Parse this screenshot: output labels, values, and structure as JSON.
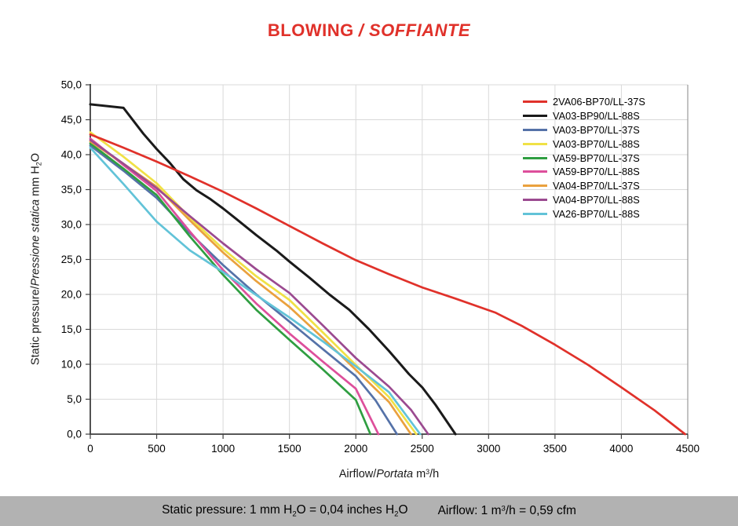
{
  "title": {
    "part1": "BLOWING",
    "part2": "/ SOFFIANTE",
    "color": "#e0312a"
  },
  "axis": {
    "y_upright": "Static pressure/",
    "y_italic": "Pressione statica",
    "y_unit_prefix": " mm  H",
    "y_unit_sub": "2",
    "y_unit_suffix": "O",
    "x_upright": "Airflow/",
    "x_italic": "Portata",
    "x_unit_prefix": " m",
    "x_unit_sup": "3",
    "x_unit_suffix": "/h"
  },
  "footer": {
    "sp_prefix": "Static pressure: 1 mm H",
    "sp_sub1": "2",
    "sp_mid": "O = 0,04 inches H",
    "sp_sub2": "2",
    "sp_suffix": "O",
    "af_prefix": "Airflow: 1 m",
    "af_sup": "3",
    "af_suffix": "/h = 0,59 cfm",
    "bar_color": "#b2b2b2"
  },
  "chart_data": {
    "type": "line",
    "title": "BLOWING / SOFFIANTE",
    "xlabel": "Airflow/Portata m3/h",
    "ylabel": "Static pressure/Pressione statica mm H2O",
    "xlim": [
      0,
      4500
    ],
    "ylim": [
      0,
      50
    ],
    "grid": true,
    "legend_position": "upper right",
    "x_ticks": [
      "0",
      "500",
      "1000",
      "1500",
      "2000",
      "2500",
      "3000",
      "3500",
      "4000",
      "4500"
    ],
    "y_ticks": [
      "50,0",
      "45,0",
      "40,0",
      "35,0",
      "30,0",
      "25,0",
      "20,0",
      "15,0",
      "10,0",
      "5,0",
      "0,0"
    ],
    "colors": {
      "gridline": "#d9d9d9",
      "axis": "#3f3f3f",
      "right_border": "#9a9a9a"
    },
    "series": [
      {
        "name": "2VA06-BP70/LL-37S",
        "color": "#e0312a",
        "points": [
          [
            0,
            42.9
          ],
          [
            250,
            41.0
          ],
          [
            500,
            39.0
          ],
          [
            750,
            36.9
          ],
          [
            1000,
            34.7
          ],
          [
            1250,
            32.3
          ],
          [
            1500,
            29.8
          ],
          [
            1750,
            27.3
          ],
          [
            2000,
            24.9
          ],
          [
            2250,
            22.9
          ],
          [
            2500,
            21.0
          ],
          [
            2750,
            19.4
          ],
          [
            3050,
            17.4
          ],
          [
            3250,
            15.5
          ],
          [
            3500,
            12.8
          ],
          [
            3750,
            9.9
          ],
          [
            4000,
            6.7
          ],
          [
            4250,
            3.4
          ],
          [
            4480,
            0
          ]
        ]
      },
      {
        "name": "VA03-BP90/LL-88S",
        "color": "#1a1a1a",
        "points": [
          [
            0,
            47.2
          ],
          [
            250,
            46.7
          ],
          [
            400,
            43.0
          ],
          [
            500,
            40.8
          ],
          [
            600,
            38.8
          ],
          [
            700,
            36.5
          ],
          [
            800,
            34.9
          ],
          [
            900,
            33.7
          ],
          [
            1000,
            32.3
          ],
          [
            1100,
            30.8
          ],
          [
            1250,
            28.5
          ],
          [
            1400,
            26.3
          ],
          [
            1500,
            24.7
          ],
          [
            1650,
            22.4
          ],
          [
            1800,
            20.0
          ],
          [
            1950,
            17.8
          ],
          [
            2100,
            15.0
          ],
          [
            2250,
            11.9
          ],
          [
            2400,
            8.6
          ],
          [
            2500,
            6.7
          ],
          [
            2600,
            4.2
          ],
          [
            2750,
            0
          ]
        ]
      },
      {
        "name": "VA03-BP70/LL-37S",
        "color": "#5572a8",
        "points": [
          [
            0,
            41.3
          ],
          [
            250,
            37.7
          ],
          [
            500,
            33.8
          ],
          [
            750,
            28.8
          ],
          [
            1000,
            24.2
          ],
          [
            1250,
            20.0
          ],
          [
            1500,
            16.1
          ],
          [
            1750,
            12.2
          ],
          [
            2000,
            8.3
          ],
          [
            2150,
            4.8
          ],
          [
            2310,
            0
          ]
        ]
      },
      {
        "name": "VA03-BP70/LL-88S",
        "color": "#f0e146",
        "points": [
          [
            0,
            43.2
          ],
          [
            250,
            39.7
          ],
          [
            500,
            35.9
          ],
          [
            750,
            31.0
          ],
          [
            1000,
            26.5
          ],
          [
            1250,
            22.6
          ],
          [
            1500,
            19.2
          ],
          [
            1750,
            14.6
          ],
          [
            2000,
            9.9
          ],
          [
            2250,
            5.3
          ],
          [
            2455,
            0
          ]
        ]
      },
      {
        "name": "VA59-BP70/LL-37S",
        "color": "#2f9e41",
        "points": [
          [
            0,
            41.6
          ],
          [
            250,
            38.0
          ],
          [
            500,
            34.2
          ],
          [
            750,
            28.3
          ],
          [
            1000,
            22.8
          ],
          [
            1250,
            17.8
          ],
          [
            1500,
            13.5
          ],
          [
            1750,
            9.3
          ],
          [
            2000,
            4.9
          ],
          [
            2110,
            0
          ]
        ]
      },
      {
        "name": "VA59-BP70/LL-88S",
        "color": "#dd4f9b",
        "points": [
          [
            0,
            42.3
          ],
          [
            250,
            38.5
          ],
          [
            500,
            34.8
          ],
          [
            750,
            29.0
          ],
          [
            1000,
            23.5
          ],
          [
            1250,
            18.7
          ],
          [
            1500,
            14.4
          ],
          [
            1750,
            10.4
          ],
          [
            2000,
            6.5
          ],
          [
            2170,
            0
          ]
        ]
      },
      {
        "name": "VA04-BP70/LL-37S",
        "color": "#eaa13e",
        "points": [
          [
            0,
            41.9
          ],
          [
            250,
            38.7
          ],
          [
            500,
            35.4
          ],
          [
            750,
            30.6
          ],
          [
            1000,
            26.0
          ],
          [
            1250,
            21.9
          ],
          [
            1500,
            18.2
          ],
          [
            1750,
            13.8
          ],
          [
            2000,
            9.2
          ],
          [
            2250,
            4.6
          ],
          [
            2415,
            0
          ]
        ]
      },
      {
        "name": "VA04-BP70/LL-88S",
        "color": "#9b4a90",
        "points": [
          [
            0,
            42.1
          ],
          [
            250,
            38.7
          ],
          [
            500,
            35.2
          ],
          [
            750,
            31.2
          ],
          [
            1000,
            27.3
          ],
          [
            1250,
            23.6
          ],
          [
            1500,
            20.2
          ],
          [
            1750,
            15.6
          ],
          [
            2000,
            10.9
          ],
          [
            2250,
            6.8
          ],
          [
            2415,
            3.5
          ],
          [
            2545,
            0
          ]
        ]
      },
      {
        "name": "VA26-BP70/LL-88S",
        "color": "#62c3d8",
        "points": [
          [
            0,
            41.0
          ],
          [
            250,
            35.8
          ],
          [
            500,
            30.4
          ],
          [
            750,
            26.3
          ],
          [
            1000,
            23.2
          ],
          [
            1250,
            19.9
          ],
          [
            1500,
            16.7
          ],
          [
            1750,
            13.3
          ],
          [
            2000,
            9.7
          ],
          [
            2250,
            6.0
          ],
          [
            2485,
            0
          ]
        ]
      }
    ]
  }
}
